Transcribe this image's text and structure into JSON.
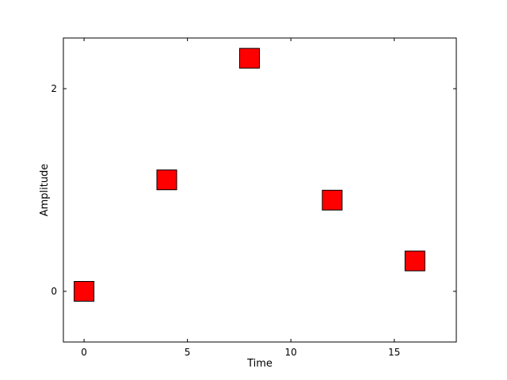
{
  "chart_data": {
    "type": "scatter",
    "xlabel": "Time",
    "ylabel": "Amplitude",
    "xlim": [
      -1,
      18
    ],
    "ylim": [
      -0.5,
      2.5
    ],
    "xticks": [
      0,
      5,
      10,
      15
    ],
    "yticks": [
      0,
      2
    ],
    "grid": false,
    "marker": "square",
    "marker_color": "#ff0000",
    "marker_edge_color": "#000000",
    "series": [
      {
        "x": [
          0,
          4,
          8,
          12,
          16
        ],
        "y": [
          0.0,
          1.1,
          2.3,
          0.9,
          0.3
        ]
      }
    ]
  }
}
